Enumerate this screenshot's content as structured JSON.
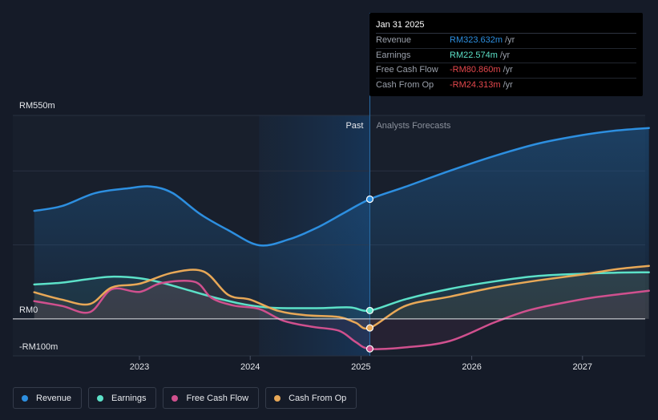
{
  "chart_data": {
    "type": "line",
    "y_unit_prefix": "RM",
    "ylim": [
      -100,
      550
    ],
    "y_ticks": [
      {
        "value": 550,
        "label": "RM550m"
      },
      {
        "value": 0,
        "label": "RM0"
      },
      {
        "value": -100,
        "label": "-RM100m"
      }
    ],
    "xlim": [
      2022.05,
      2027.6
    ],
    "x_ticks": [
      {
        "value": 2023,
        "label": "2023"
      },
      {
        "value": 2024,
        "label": "2024"
      },
      {
        "value": 2025,
        "label": "2025"
      },
      {
        "value": 2026,
        "label": "2026"
      },
      {
        "value": 2027,
        "label": "2027"
      }
    ],
    "divider_x": 2025.08,
    "past_shade_start": 2024.08,
    "zone_labels": {
      "past": "Past",
      "forecast": "Analysts Forecasts"
    },
    "series": [
      {
        "name": "Revenue",
        "color": "#2d8fe0",
        "fill": true,
        "points": [
          [
            2022.05,
            292
          ],
          [
            2022.3,
            305
          ],
          [
            2022.6,
            340
          ],
          [
            2022.9,
            353
          ],
          [
            2023.1,
            358
          ],
          [
            2023.3,
            340
          ],
          [
            2023.55,
            283
          ],
          [
            2023.8,
            240
          ],
          [
            2024.08,
            199
          ],
          [
            2024.35,
            215
          ],
          [
            2024.6,
            246
          ],
          [
            2024.85,
            287
          ],
          [
            2025.08,
            323.632
          ],
          [
            2025.4,
            357
          ],
          [
            2025.8,
            400
          ],
          [
            2026.2,
            440
          ],
          [
            2026.6,
            474
          ],
          [
            2027.0,
            497
          ],
          [
            2027.3,
            509
          ],
          [
            2027.6,
            516
          ]
        ]
      },
      {
        "name": "Earnings",
        "color": "#5ce1c8",
        "fill": false,
        "points": [
          [
            2022.05,
            93
          ],
          [
            2022.3,
            98
          ],
          [
            2022.55,
            108
          ],
          [
            2022.75,
            114
          ],
          [
            2023.0,
            110
          ],
          [
            2023.2,
            98
          ],
          [
            2023.45,
            77
          ],
          [
            2023.7,
            56
          ],
          [
            2023.95,
            39
          ],
          [
            2024.2,
            30
          ],
          [
            2024.6,
            29
          ],
          [
            2024.9,
            31
          ],
          [
            2025.08,
            22.574
          ],
          [
            2025.4,
            53
          ],
          [
            2025.8,
            81
          ],
          [
            2026.2,
            101
          ],
          [
            2026.6,
            116
          ],
          [
            2027.0,
            122
          ],
          [
            2027.3,
            125
          ],
          [
            2027.6,
            126
          ]
        ]
      },
      {
        "name": "Free Cash Flow",
        "color": "#d0508e",
        "fill": false,
        "points": [
          [
            2022.05,
            48
          ],
          [
            2022.3,
            35
          ],
          [
            2022.55,
            18
          ],
          [
            2022.75,
            80
          ],
          [
            2023.0,
            73
          ],
          [
            2023.2,
            97
          ],
          [
            2023.5,
            100
          ],
          [
            2023.65,
            57
          ],
          [
            2023.85,
            36
          ],
          [
            2024.08,
            27
          ],
          [
            2024.3,
            -5
          ],
          [
            2024.55,
            -21
          ],
          [
            2024.8,
            -32
          ],
          [
            2024.95,
            -62
          ],
          [
            2025.08,
            -80.86
          ],
          [
            2025.4,
            -77
          ],
          [
            2025.8,
            -60
          ],
          [
            2026.2,
            -10
          ],
          [
            2026.5,
            22
          ],
          [
            2026.8,
            42
          ],
          [
            2027.1,
            58
          ],
          [
            2027.4,
            69
          ],
          [
            2027.6,
            76
          ]
        ]
      },
      {
        "name": "Cash From Op",
        "color": "#e8a857",
        "fill": false,
        "points": [
          [
            2022.05,
            72
          ],
          [
            2022.3,
            52
          ],
          [
            2022.55,
            40
          ],
          [
            2022.75,
            85
          ],
          [
            2023.0,
            95
          ],
          [
            2023.3,
            125
          ],
          [
            2023.58,
            128
          ],
          [
            2023.8,
            65
          ],
          [
            2024.0,
            52
          ],
          [
            2024.25,
            22
          ],
          [
            2024.5,
            10
          ],
          [
            2024.8,
            5
          ],
          [
            2024.95,
            -10
          ],
          [
            2025.08,
            -24.313
          ],
          [
            2025.4,
            35
          ],
          [
            2025.8,
            60
          ],
          [
            2026.2,
            85
          ],
          [
            2026.6,
            104
          ],
          [
            2027.0,
            120
          ],
          [
            2027.3,
            134
          ],
          [
            2027.6,
            143
          ]
        ]
      }
    ],
    "tooltip": {
      "date": "Jan 31 2025",
      "rows": [
        {
          "name": "Revenue",
          "value": "RM323.632m",
          "unit": "/yr",
          "color": "#2d8fe0"
        },
        {
          "name": "Earnings",
          "value": "RM22.574m",
          "unit": "/yr",
          "color": "#5ce1c8"
        },
        {
          "name": "Free Cash Flow",
          "value": "-RM80.860m",
          "unit": "/yr",
          "color": "#e5484d"
        },
        {
          "name": "Cash From Op",
          "value": "-RM24.313m",
          "unit": "/yr",
          "color": "#e5484d"
        }
      ]
    }
  },
  "legend": [
    {
      "label": "Revenue",
      "color": "#2d8fe0"
    },
    {
      "label": "Earnings",
      "color": "#5ce1c8"
    },
    {
      "label": "Free Cash Flow",
      "color": "#d0508e"
    },
    {
      "label": "Cash From Op",
      "color": "#e8a857"
    }
  ]
}
